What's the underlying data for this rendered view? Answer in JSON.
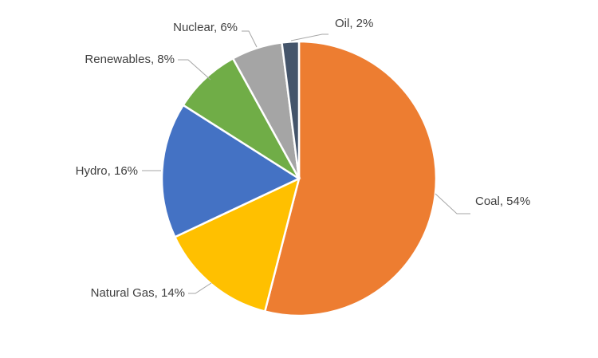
{
  "chart_data": {
    "type": "pie",
    "title": "",
    "legend": "none",
    "start": "12 o'clock",
    "direction": "clockwise",
    "slices": [
      {
        "label": "Coal",
        "value": 54,
        "display": "Coal, 54%",
        "color": "#ED7D31"
      },
      {
        "label": "Natural Gas",
        "value": 14,
        "display": "Natural Gas, 14%",
        "color": "#FFC000"
      },
      {
        "label": "Hydro",
        "value": 16,
        "display": "Hydro, 16%",
        "color": "#4472C4"
      },
      {
        "label": "Renewables",
        "value": 8,
        "display": "Renewables, 8%",
        "color": "#70AD47"
      },
      {
        "label": "Nuclear",
        "value": 6,
        "display": "Nuclear, 6%",
        "color": "#A5A5A5"
      },
      {
        "label": "Oil",
        "value": 2,
        "display": "Oil, 2%",
        "color": "#44546A"
      }
    ]
  }
}
